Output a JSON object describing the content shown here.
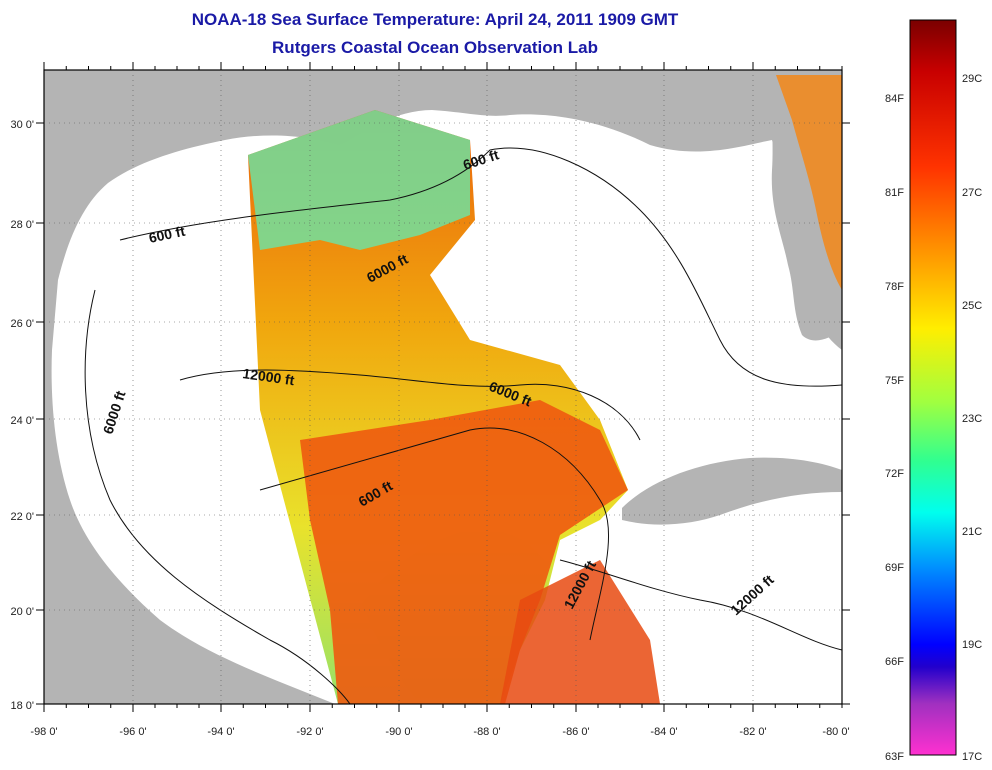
{
  "title": "NOAA-18 Sea Surface Temperature:  April 24, 2011 1909 GMT",
  "subtitle": "Rutgers Coastal Ocean Observation Lab",
  "lon_labels": [
    "-98 0'",
    "-96 0'",
    "-94 0'",
    "-92 0'",
    "-90 0'",
    "-88 0'",
    "-86 0'",
    "-84 0'",
    "-82 0'",
    "-80 0'"
  ],
  "lat_labels": [
    "30 0'",
    "28 0'",
    "26 0'",
    "24 0'",
    "22 0'",
    "20 0'",
    "18 0'"
  ],
  "depth_contours": {
    "c600_gulf": "600 ft",
    "c600_east": "600 ft",
    "c600_yucatan": "600 ft",
    "c6000_west": "6000 ft",
    "c6000_north": "6000 ft",
    "c6000_east": "6000 ft",
    "c12000_center": "12000 ft",
    "c12000_south": "12000 ft",
    "c12000_caribbean": "12000 ft"
  },
  "colorbar": {
    "fahrenheit": [
      "84F",
      "81F",
      "78F",
      "75F",
      "72F",
      "69F",
      "66F",
      "63F"
    ],
    "celsius": [
      "29C",
      "27C",
      "25C",
      "23C",
      "21C",
      "19C",
      "17C"
    ]
  },
  "colors": {
    "land": "#b4b4b4",
    "nodata": "#ffffff",
    "title": "#1a1aa6"
  }
}
